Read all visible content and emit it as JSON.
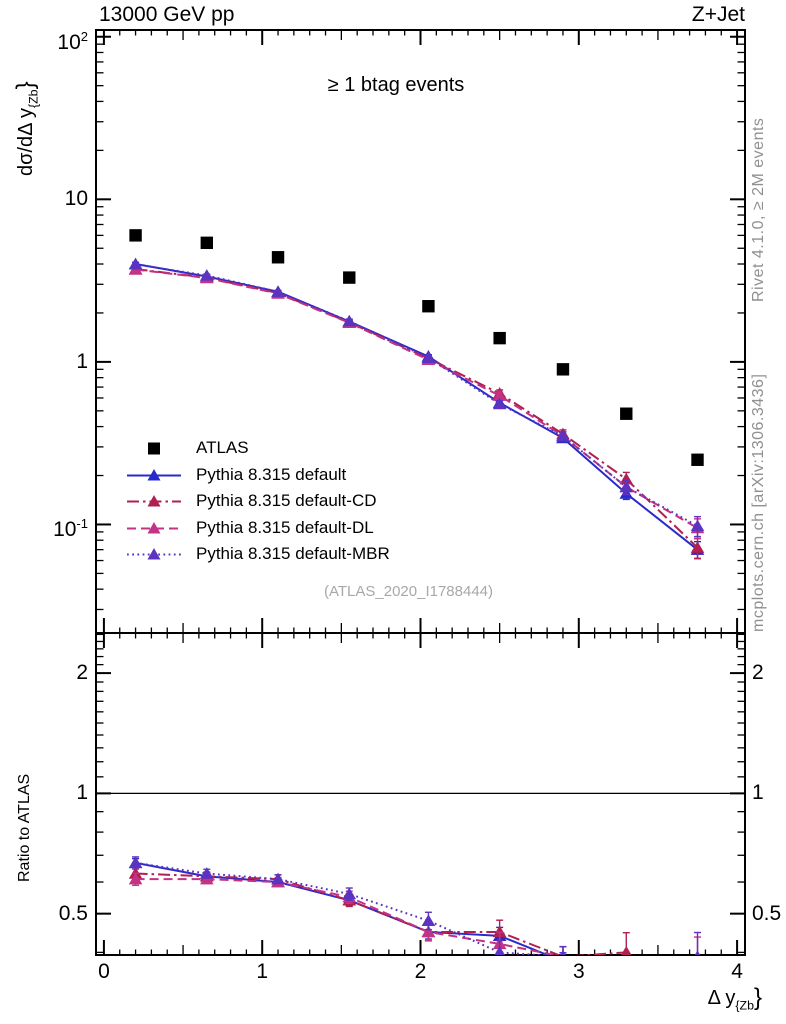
{
  "page": {
    "title_left": "13000 GeV pp",
    "title_right": "Z+Jet",
    "annotation": "≥ 1 btag events",
    "watermark": "(ATLAS_2020_I1788444)",
    "side_text_top": "Rivet 4.1.0, ≥ 2M events",
    "side_text_bottom": "mcplots.cern.ch [arXiv:1306.3436]",
    "x_axis_label": {
      "main": "Δ y",
      "sub": "{Zb",
      "close": "}"
    },
    "y_axis_label": {
      "main": "dσ/dΔ y",
      "sub": "{Zb",
      "close": "}"
    },
    "ratio_axis_label": "Ratio to ATLAS"
  },
  "chart_data": [
    {
      "type": "line",
      "panel": "main",
      "title": "13000 GeV pp — Z+Jet, ≥ 1 btag events",
      "xlabel": "Δ y_{Zb}",
      "ylabel": "dσ/dΔ y_{Zb}",
      "xlim": [
        -0.05,
        4.05
      ],
      "yscale": "log",
      "ylim": [
        0.0215,
        110
      ],
      "grid": false,
      "legend_position": "middle-left",
      "x_ticks": [
        {
          "v": 0,
          "label": "0"
        },
        {
          "v": 1,
          "label": "1"
        },
        {
          "v": 2,
          "label": "2"
        },
        {
          "v": 3,
          "label": "3"
        },
        {
          "v": 4,
          "label": "4"
        }
      ],
      "y_ticks": [
        {
          "v": 100,
          "base": "10",
          "exp": "2"
        },
        {
          "v": 10,
          "base": "10",
          "exp": ""
        },
        {
          "v": 1,
          "base": "1",
          "exp": ""
        },
        {
          "v": 0.1,
          "base": "10",
          "exp": "-1"
        }
      ],
      "x": [
        0.2,
        0.65,
        1.1,
        1.55,
        2.05,
        2.5,
        2.9,
        3.3,
        3.75
      ],
      "series": [
        {
          "name": "ATLAS",
          "color": "#000000",
          "marker": "square",
          "line": "none",
          "values": [
            6.0,
            5.4,
            4.4,
            3.3,
            2.2,
            1.4,
            0.9,
            0.48,
            0.25
          ]
        },
        {
          "name": "Pythia 8.315 default",
          "color": "#2a2acc",
          "marker": "triangle",
          "line": "solid",
          "values": [
            4.0,
            3.35,
            2.7,
            1.77,
            1.08,
            0.56,
            0.34,
            0.155,
            0.07
          ],
          "yerr_frac": [
            0.02,
            0.015,
            0.015,
            0.02,
            0.025,
            0.04,
            0.05,
            0.08,
            0.12
          ]
        },
        {
          "name": "Pythia 8.315 default-CD",
          "color": "#b02050",
          "marker": "triangle",
          "line": "dashdot",
          "values": [
            3.72,
            3.3,
            2.65,
            1.75,
            1.05,
            0.64,
            0.36,
            0.19,
            0.072
          ],
          "yerr_frac": [
            0.03,
            0.02,
            0.02,
            0.03,
            0.035,
            0.05,
            0.06,
            0.1,
            0.14
          ]
        },
        {
          "name": "Pythia 8.315 default-DL",
          "color": "#c23385",
          "marker": "triangle",
          "line": "dashed",
          "values": [
            3.7,
            3.28,
            2.63,
            1.74,
            1.03,
            0.62,
            0.35,
            0.17,
            0.095
          ],
          "yerr_frac": [
            0.03,
            0.02,
            0.02,
            0.03,
            0.035,
            0.05,
            0.06,
            0.1,
            0.14
          ]
        },
        {
          "name": "Pythia 8.315 default-MBR",
          "color": "#5c33c0",
          "marker": "triangle",
          "line": "dotted",
          "values": [
            3.98,
            3.4,
            2.7,
            1.78,
            1.06,
            0.55,
            0.35,
            0.17,
            0.098
          ],
          "yerr_frac": [
            0.03,
            0.02,
            0.02,
            0.03,
            0.035,
            0.05,
            0.06,
            0.1,
            0.14
          ]
        }
      ]
    },
    {
      "type": "line",
      "panel": "ratio",
      "ylabel": "Ratio to ATLAS",
      "yscale": "log",
      "ylim": [
        0.394,
        2.52
      ],
      "reference_line": 1,
      "y_ticks": [
        {
          "v": 2,
          "label": "2"
        },
        {
          "v": 1,
          "label": "1"
        },
        {
          "v": 0.5,
          "label": "0.5"
        }
      ],
      "x": [
        0.2,
        0.65,
        1.1,
        1.55,
        2.05,
        2.5,
        2.9,
        3.3,
        3.75
      ],
      "series": [
        {
          "name": "Pythia 8.315 default",
          "color": "#2a2acc",
          "marker": "triangle",
          "line": "solid",
          "values": [
            0.67,
            0.62,
            0.6,
            0.54,
            0.45,
            0.44,
            0.38,
            0.32,
            0.28
          ],
          "yerr_frac": [
            0.025,
            0.02,
            0.02,
            0.03,
            0.04,
            0.05,
            0.05,
            0.09,
            0.12
          ]
        },
        {
          "name": "Pythia 8.315 default-CD",
          "color": "#b02050",
          "marker": "triangle",
          "line": "dashdot",
          "values": [
            0.63,
            0.62,
            0.61,
            0.54,
            0.45,
            0.45,
            0.39,
            0.4,
            0.29
          ],
          "yerr_frac": [
            0.035,
            0.025,
            0.025,
            0.035,
            0.05,
            0.07,
            0.06,
            0.12,
            0.15
          ]
        },
        {
          "name": "Pythia 8.315 default-DL",
          "color": "#c23385",
          "marker": "triangle",
          "line": "dashed",
          "values": [
            0.61,
            0.61,
            0.6,
            0.55,
            0.45,
            0.42,
            0.39,
            0.35,
            0.38
          ],
          "yerr_frac": [
            0.035,
            0.025,
            0.025,
            0.035,
            0.05,
            0.07,
            0.06,
            0.12,
            0.15
          ]
        },
        {
          "name": "Pythia 8.315 default-MBR",
          "color": "#5c33c0",
          "marker": "triangle",
          "line": "dotted",
          "values": [
            0.67,
            0.63,
            0.61,
            0.56,
            0.48,
            0.4,
            0.39,
            0.35,
            0.39
          ],
          "yerr_frac": [
            0.035,
            0.025,
            0.025,
            0.035,
            0.05,
            0.07,
            0.06,
            0.12,
            0.15
          ]
        }
      ]
    }
  ]
}
